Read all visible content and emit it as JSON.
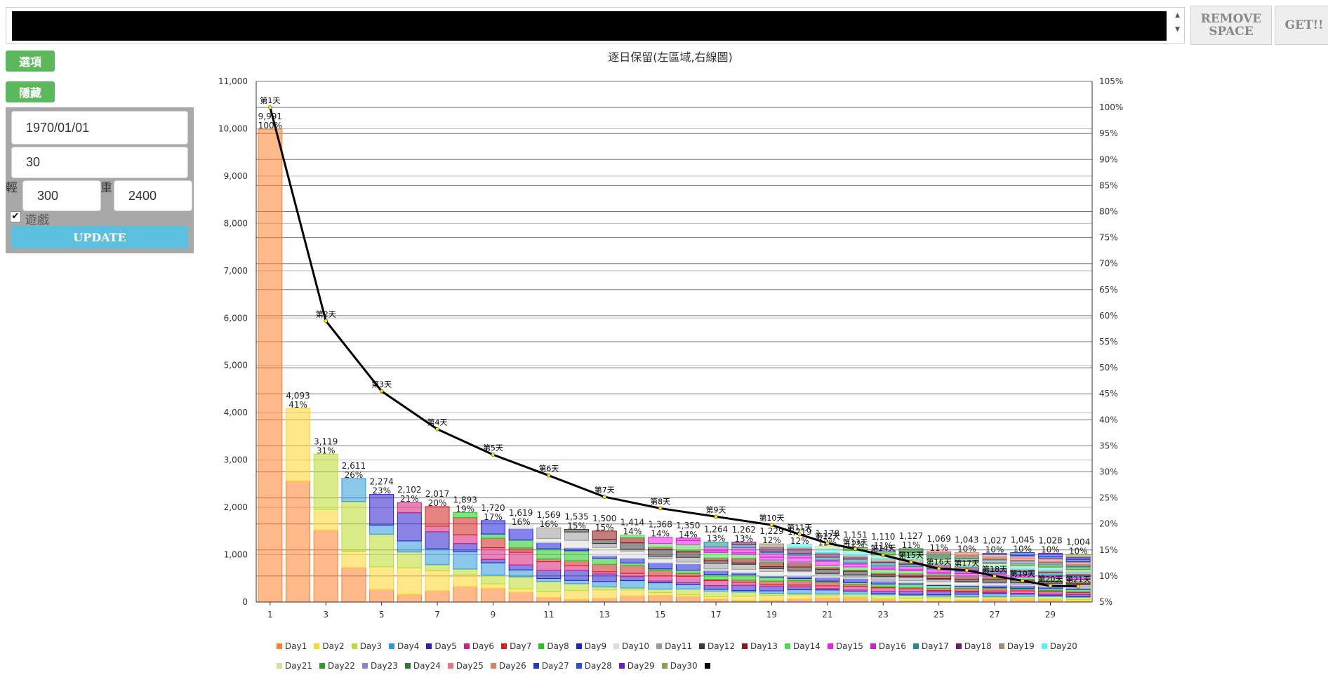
{
  "toolbar": {
    "remove_label": "REMOVE SPACE",
    "get_label": "GET!!"
  },
  "sidebar": {
    "options_label": "選項",
    "hide_label": "隱藏",
    "date_value": "1970/01/01",
    "days_value": "30",
    "min_value": "300",
    "max_value": "2400",
    "left_label": "輕",
    "right_label": "重",
    "checkbox_checked": true,
    "checkbox_label": "遊戲",
    "update_label": "UPDATE"
  },
  "chart_data": {
    "type": "bar",
    "title": "逐日保留(左區域,右線圖)",
    "stacked": true,
    "x": [
      1,
      2,
      3,
      4,
      5,
      6,
      7,
      8,
      9,
      10,
      11,
      12,
      13,
      14,
      15,
      16,
      17,
      18,
      19,
      20,
      21,
      22,
      23,
      24,
      25,
      26,
      27,
      28,
      29,
      30
    ],
    "x_ticks": [
      1,
      3,
      5,
      7,
      9,
      11,
      13,
      15,
      17,
      19,
      21,
      23,
      25,
      27,
      29
    ],
    "totals": [
      9991,
      4093,
      3119,
      2611,
      2274,
      2102,
      2017,
      1893,
      1720,
      1619,
      1569,
      1535,
      1500,
      1414,
      1368,
      1350,
      1264,
      1262,
      1229,
      1219,
      1178,
      1151,
      1110,
      1127,
      1069,
      1043,
      1027,
      1045,
      1028,
      1004
    ],
    "total_labels": [
      "9,991",
      "4,093",
      "3,119",
      "2,611",
      "2,274",
      "2,102",
      "2,017",
      "1,893",
      "1,720",
      "1,619",
      "1,569",
      "1,535",
      "1,500",
      "1,414",
      "1,368",
      "1,350",
      "1,264",
      "1,262",
      "1,229",
      "1,219",
      "1,178",
      "1,151",
      "1,110",
      "1,127",
      "1,069",
      "1,043",
      "1,027",
      "1,045",
      "1,028",
      "1,004"
    ],
    "percent_labels": [
      "100%",
      "41%",
      "31%",
      "26%",
      "23%",
      "21%",
      "20%",
      "19%",
      "17%",
      "16%",
      "16%",
      "15%",
      "15%",
      "14%",
      "14%",
      "14%",
      "13%",
      "13%",
      "12%",
      "12%",
      "12%",
      "12%",
      "11%",
      "11%",
      "11%",
      "10%",
      "10%",
      "10%",
      "10%",
      "10%"
    ],
    "ylim_left": [
      0,
      11000
    ],
    "yticks_left": [
      "0",
      "1,000",
      "2,000",
      "3,000",
      "4,000",
      "5,000",
      "6,000",
      "7,000",
      "8,000",
      "9,000",
      "10,000",
      "11,000"
    ],
    "ylim_right": [
      5,
      105
    ],
    "yticks_right": [
      "5%",
      "10%",
      "15%",
      "20%",
      "25%",
      "30%",
      "35%",
      "40%",
      "45%",
      "50%",
      "55%",
      "60%",
      "65%",
      "70%",
      "75%",
      "80%",
      "85%",
      "90%",
      "95%",
      "100%",
      "105%"
    ],
    "line": {
      "values": [
        100,
        59,
        45.5,
        38.2,
        33.3,
        29.3,
        25.2,
        23.0,
        21.4,
        19.8,
        18.0,
        16.3,
        15.2,
        14.0,
        12.7,
        11.4,
        11.1,
        10.0,
        9.1,
        8.1,
        8.0
      ],
      "labels": [
        "第1天",
        "第2天",
        "第3天",
        "第4天",
        "第5天",
        "第6天",
        "第7天",
        "第8天",
        "第9天",
        "第10天",
        "第11天",
        "第12天",
        "第13天",
        "第14天",
        "第15天",
        "第16天",
        "第17天",
        "第18天",
        "第19天",
        "第20天",
        "第21天"
      ],
      "x": [
        1,
        3,
        5,
        7,
        9,
        11,
        13,
        15,
        17,
        19,
        20,
        21,
        22,
        23,
        24,
        25,
        26,
        27,
        28,
        29,
        30
      ]
    },
    "series_names": [
      "Day1",
      "Day2",
      "Day3",
      "Day4",
      "Day5",
      "Day6",
      "Day7",
      "Day8",
      "Day9",
      "Day10",
      "Day11",
      "Day12",
      "Day13",
      "Day14",
      "Day15",
      "Day16",
      "Day17",
      "Day18",
      "Day19",
      "Day20",
      "Day21",
      "Day22",
      "Day23",
      "Day24",
      "Day25",
      "Day26",
      "Day27",
      "Day28",
      "Day29",
      "Day30"
    ],
    "series_colors": [
      "#ff7f2a",
      "#ffd42a",
      "#bcdc2a",
      "#2a99d9",
      "#2a1ecc",
      "#d81e78",
      "#d21e1e",
      "#1ec81e",
      "#1e1edc",
      "#dcdcdc",
      "#9a9a9a",
      "#3a3a3a",
      "#8c1414",
      "#4adc4a",
      "#f01ef0",
      "#d21ed2",
      "#1e8c96",
      "#6e1e6e",
      "#a08c6e",
      "#5af0f0",
      "#c8e6a0",
      "#28a028",
      "#8c82c8",
      "#2e7d32",
      "#f07080",
      "#e08060",
      "#1e3cc8",
      "#2050e0",
      "#6a1ec8",
      "#9a9a50"
    ],
    "legend_position": "bottom",
    "grid": true
  }
}
